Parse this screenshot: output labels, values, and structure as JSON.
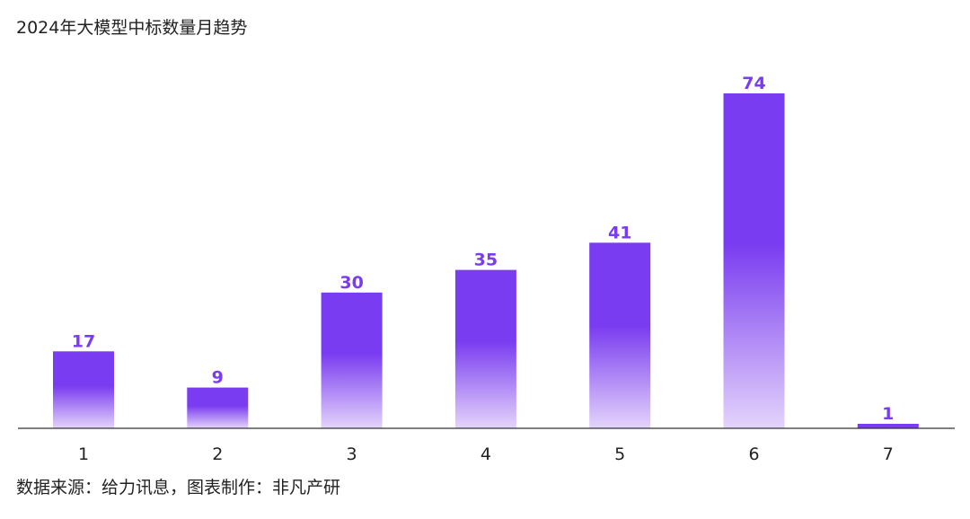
{
  "title": "2024年大模型中标数量月趋势",
  "source": "数据来源：给力讯息，图表制作：非凡产研",
  "colors": {
    "bar_top": "#7a3cf0",
    "bar_bottom": "#e4d4fb",
    "value_label": "#7a3cf0",
    "axis": "#333333",
    "tick_label": "#222222"
  },
  "chart_data": {
    "type": "bar",
    "title": "2024年大模型中标数量月趋势",
    "categories": [
      "1",
      "2",
      "3",
      "4",
      "5",
      "6",
      "7"
    ],
    "values": [
      17,
      9,
      30,
      35,
      41,
      74,
      1
    ],
    "xlabel": "",
    "ylabel": "",
    "ylim": [
      0,
      80
    ],
    "grid": false,
    "legend": "none",
    "data_labels": true
  }
}
